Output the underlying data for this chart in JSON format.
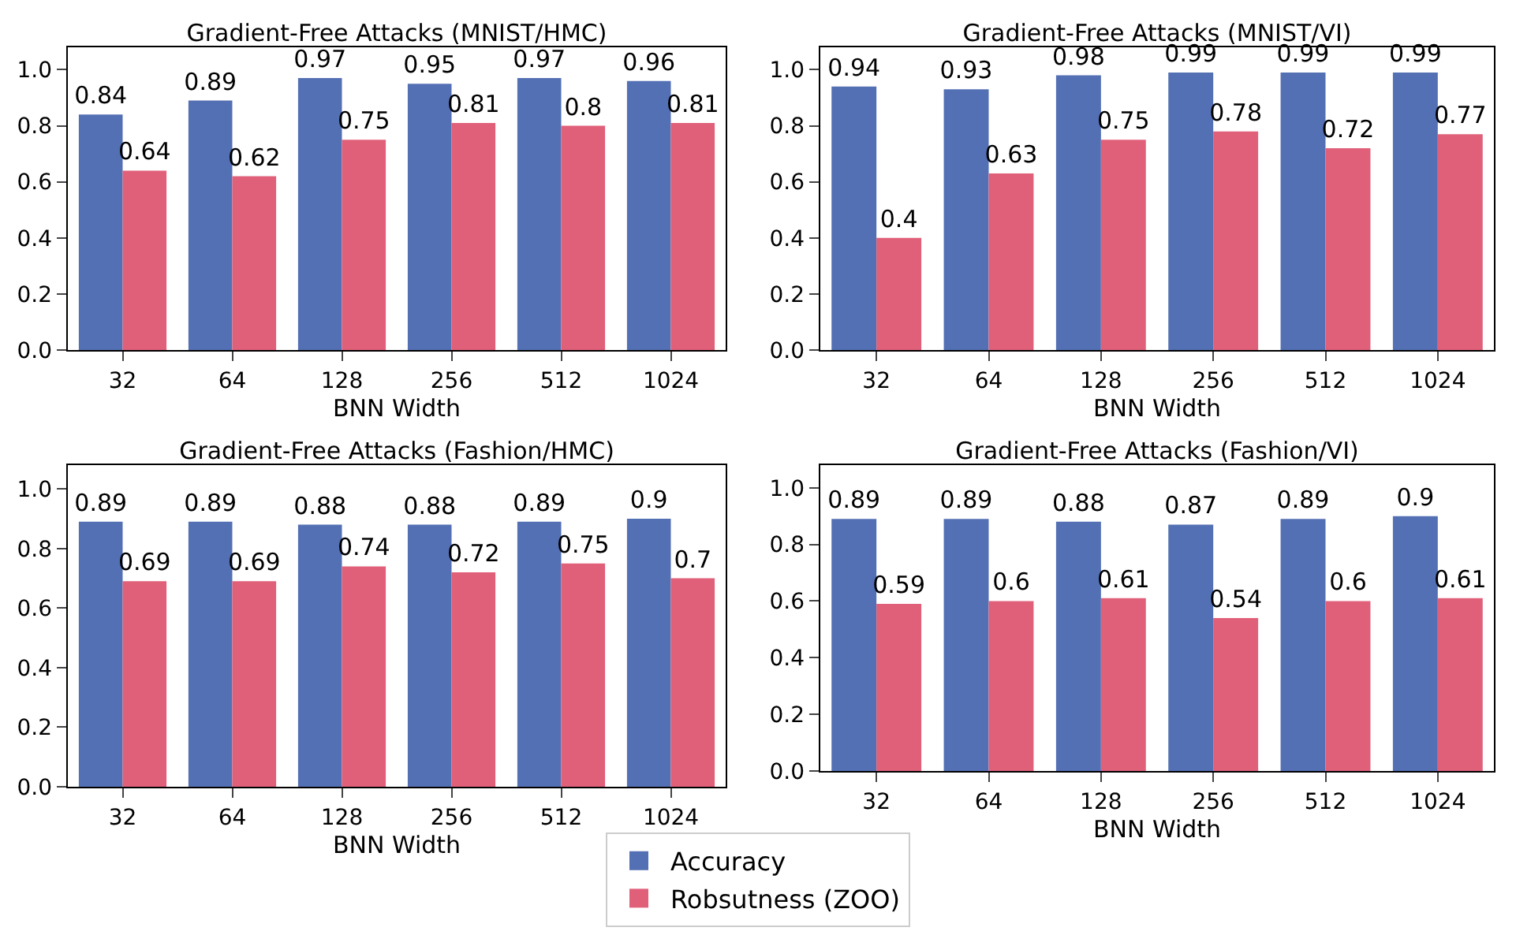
{
  "chart_data": [
    {
      "type": "bar",
      "title": "Gradient-Free Attacks (MNIST/HMC)",
      "xlabel": "BNN Width",
      "categories": [
        "32",
        "64",
        "128",
        "256",
        "512",
        "1024"
      ],
      "ylim": [
        0,
        1.08
      ],
      "yticks": [
        {
          "value": 0,
          "label": "0.0"
        },
        {
          "value": 0.2,
          "label": "0.2"
        },
        {
          "value": 0.4,
          "label": "0.4"
        },
        {
          "value": 0.6,
          "label": "0.6"
        },
        {
          "value": 0.8,
          "label": "0.8"
        },
        {
          "value": 1,
          "label": "1.0"
        }
      ],
      "data_labels": true,
      "legend": false,
      "grid": false,
      "series": [
        {
          "color": "#5470b4",
          "values": [
            0.84,
            0.89,
            0.97,
            0.95,
            0.97,
            0.96
          ]
        },
        {
          "color": "#e0607a",
          "values": [
            0.64,
            0.62,
            0.75,
            0.81,
            0.8,
            0.81
          ]
        }
      ]
    },
    {
      "type": "bar",
      "title": "Gradient-Free Attacks (MNIST/VI)",
      "xlabel": "BNN Width",
      "categories": [
        "32",
        "64",
        "128",
        "256",
        "512",
        "1024"
      ],
      "ylim": [
        0,
        1.08
      ],
      "yticks": [
        {
          "value": 0,
          "label": "0.0"
        },
        {
          "value": 0.2,
          "label": "0.2"
        },
        {
          "value": 0.4,
          "label": "0.4"
        },
        {
          "value": 0.6,
          "label": "0.6"
        },
        {
          "value": 0.8,
          "label": "0.8"
        },
        {
          "value": 1,
          "label": "1.0"
        }
      ],
      "data_labels": true,
      "legend": false,
      "grid": false,
      "series": [
        {
          "color": "#5470b4",
          "values": [
            0.94,
            0.93,
            0.98,
            0.99,
            0.99,
            0.99
          ]
        },
        {
          "color": "#e0607a",
          "values": [
            0.4,
            0.63,
            0.75,
            0.78,
            0.72,
            0.77
          ]
        }
      ]
    },
    {
      "type": "bar",
      "title": "Gradient-Free Attacks (Fashion/HMC)",
      "xlabel": "BNN Width",
      "categories": [
        "32",
        "64",
        "128",
        "256",
        "512",
        "1024"
      ],
      "ylim": [
        0,
        1.08
      ],
      "yticks": [
        {
          "value": 0,
          "label": "0.0"
        },
        {
          "value": 0.2,
          "label": "0.2"
        },
        {
          "value": 0.4,
          "label": "0.4"
        },
        {
          "value": 0.6,
          "label": "0.6"
        },
        {
          "value": 0.8,
          "label": "0.8"
        },
        {
          "value": 1,
          "label": "1.0"
        }
      ],
      "data_labels": true,
      "legend": false,
      "grid": false,
      "series": [
        {
          "color": "#5470b4",
          "values": [
            0.89,
            0.89,
            0.88,
            0.88,
            0.89,
            0.9
          ]
        },
        {
          "color": "#e0607a",
          "values": [
            0.69,
            0.69,
            0.74,
            0.72,
            0.75,
            0.7
          ]
        }
      ]
    },
    {
      "type": "bar",
      "title": "Gradient-Free Attacks (Fashion/VI)",
      "xlabel": "BNN Width",
      "categories": [
        "32",
        "64",
        "128",
        "256",
        "512",
        "1024"
      ],
      "ylim": [
        0,
        1.08
      ],
      "yticks": [
        {
          "value": 0,
          "label": "0.0"
        },
        {
          "value": 0.2,
          "label": "0.2"
        },
        {
          "value": 0.4,
          "label": "0.4"
        },
        {
          "value": 0.6,
          "label": "0.6"
        },
        {
          "value": 0.8,
          "label": "0.8"
        },
        {
          "value": 1,
          "label": "1.0"
        }
      ],
      "data_labels": true,
      "legend": "bottom",
      "grid": false,
      "series": [
        {
          "name": "Accuracy",
          "color": "#5470b4",
          "values": [
            0.89,
            0.89,
            0.88,
            0.87,
            0.89,
            0.9
          ]
        },
        {
          "name": "Robsutness (ZOO)",
          "color": "#e0607a",
          "values": [
            0.59,
            0.6,
            0.61,
            0.54,
            0.6,
            0.61
          ]
        }
      ]
    }
  ]
}
